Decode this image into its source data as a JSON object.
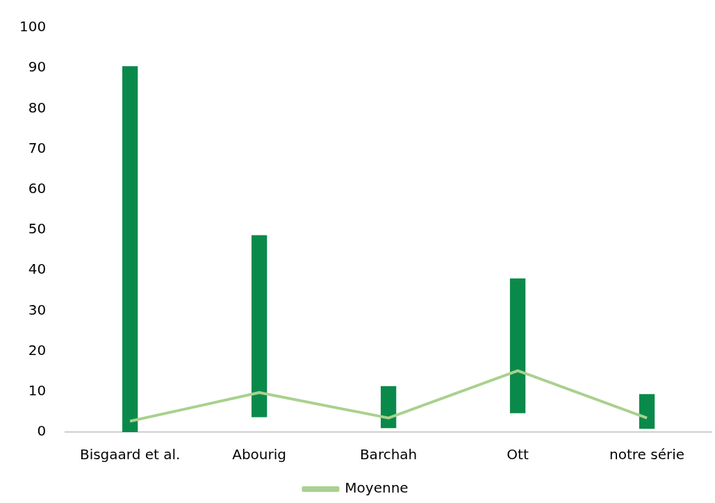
{
  "chart_data": {
    "type": "bar",
    "categories": [
      "Bisgaard et al.",
      "Abourig",
      "Barchah",
      "Ott",
      "notre série"
    ],
    "series": [
      {
        "color": "#0a8a4a",
        "base": [
          0,
          3.7,
          1,
          4.7,
          0.8
        ],
        "values": [
          90.5,
          45,
          10.4,
          33.3,
          8.6
        ]
      },
      {
        "type": "line",
        "name": "Moyenne",
        "color": "#a9d18e",
        "values": [
          2.7,
          9.8,
          3.5,
          15.2,
          3.5
        ]
      }
    ],
    "ylim": [
      0,
      100
    ],
    "yticks": [
      0,
      10,
      20,
      30,
      40,
      50,
      60,
      70,
      80,
      90,
      100
    ],
    "grid": false,
    "legend": "bottom",
    "marker": "none",
    "line_style": "solid"
  }
}
